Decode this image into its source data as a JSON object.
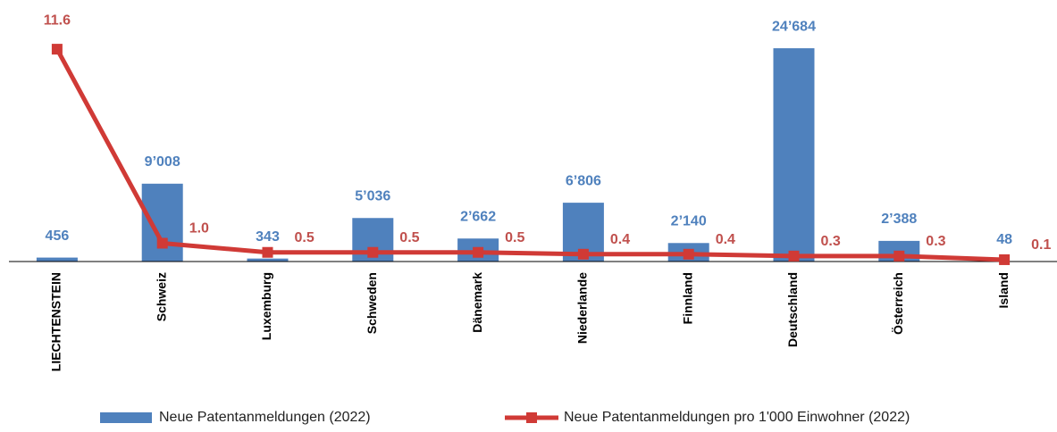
{
  "chart_data": {
    "type": "bar-line",
    "categories": [
      "LIECHTENSTEIN",
      "Schweiz",
      "Luxemburg",
      "Schweden",
      "Dänemark",
      "Niederlande",
      "Finnland",
      "Deutschland",
      "Österreich",
      "Island"
    ],
    "series": [
      {
        "name": "Neue Patentanmeldungen (2022)",
        "type": "bar",
        "color": "#4f81bd",
        "values": [
          456,
          9008,
          343,
          5036,
          2662,
          6806,
          2140,
          24684,
          2388,
          48
        ],
        "value_labels": [
          "456",
          "9’008",
          "343",
          "5’036",
          "2’662",
          "6’806",
          "2’140",
          "24’684",
          "2’388",
          "48"
        ]
      },
      {
        "name": "Neue Patentanmeldungen pro 1'000 Einwohner (2022)",
        "type": "line",
        "axis": "y2",
        "color": "#d03a36",
        "values": [
          11.6,
          1.0,
          0.5,
          0.5,
          0.5,
          0.4,
          0.4,
          0.3,
          0.3,
          0.1
        ],
        "value_labels": [
          "11.6",
          "1.0",
          "0.5",
          "0.5",
          "0.5",
          "0.4",
          "0.4",
          "0.3",
          "0.3",
          "0.1"
        ]
      }
    ],
    "ylim": [
      0,
      25000
    ],
    "y2lim": [
      0,
      11.8
    ],
    "legend": "bottom"
  }
}
